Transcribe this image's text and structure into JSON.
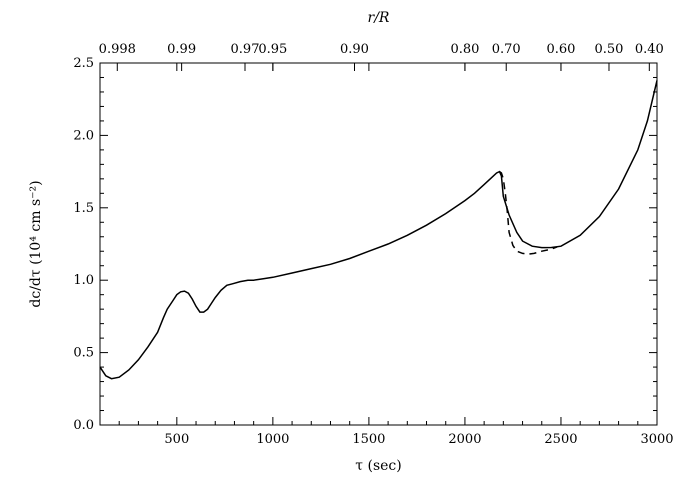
{
  "chart_data": {
    "type": "line",
    "title": "",
    "xlabel": "τ (sec)",
    "ylabel": "dc/dτ (10⁴ cm s⁻²)",
    "top_xlabel": "r/R",
    "xlim": [
      100,
      3000
    ],
    "ylim": [
      0.0,
      2.5
    ],
    "grid": false,
    "x_ticks": [
      500,
      1000,
      1500,
      2000,
      2500,
      3000
    ],
    "x_tick_labels": [
      "500",
      "1000",
      "1500",
      "2000",
      "2500",
      "3000"
    ],
    "y_ticks": [
      0.0,
      0.5,
      1.0,
      1.5,
      2.0,
      2.5
    ],
    "y_tick_labels": [
      "0.0",
      "0.5",
      "1.0",
      "1.5",
      "2.0",
      "2.5"
    ],
    "top_ticks": [
      {
        "x": 190,
        "label": "0.998"
      },
      {
        "x": 525,
        "label": "0.99"
      },
      {
        "x": 855,
        "label": "0.97"
      },
      {
        "x": 1000,
        "label": "0.95"
      },
      {
        "x": 1425,
        "label": "0.90"
      },
      {
        "x": 2000,
        "label": "0.80"
      },
      {
        "x": 2215,
        "label": "0.70"
      },
      {
        "x": 2500,
        "label": "0.60"
      },
      {
        "x": 2750,
        "label": "0.50"
      },
      {
        "x": 2960,
        "label": "0.40"
      }
    ],
    "series": [
      {
        "style": "solid",
        "x": [
          100,
          130,
          160,
          200,
          250,
          300,
          350,
          400,
          430,
          450,
          480,
          500,
          520,
          540,
          560,
          580,
          600,
          620,
          640,
          660,
          680,
          700,
          730,
          760,
          790,
          830,
          870,
          900,
          950,
          1000,
          1100,
          1200,
          1300,
          1400,
          1500,
          1600,
          1700,
          1800,
          1900,
          2000,
          2050,
          2100,
          2140,
          2165,
          2180,
          2190,
          2200,
          2230,
          2270,
          2300,
          2350,
          2400,
          2450,
          2500,
          2600,
          2700,
          2800,
          2900,
          2950,
          3000
        ],
        "y": [
          0.4,
          0.34,
          0.32,
          0.33,
          0.38,
          0.45,
          0.54,
          0.64,
          0.74,
          0.8,
          0.86,
          0.9,
          0.92,
          0.925,
          0.91,
          0.87,
          0.82,
          0.78,
          0.78,
          0.8,
          0.84,
          0.88,
          0.93,
          0.965,
          0.975,
          0.99,
          1.0,
          1.0,
          1.01,
          1.02,
          1.05,
          1.08,
          1.11,
          1.15,
          1.2,
          1.25,
          1.31,
          1.38,
          1.46,
          1.55,
          1.6,
          1.66,
          1.71,
          1.74,
          1.75,
          1.72,
          1.58,
          1.45,
          1.33,
          1.27,
          1.235,
          1.225,
          1.226,
          1.235,
          1.31,
          1.44,
          1.63,
          1.9,
          2.1,
          2.38
        ]
      },
      {
        "style": "dashed",
        "x": [
          2180,
          2190,
          2200,
          2210,
          2220,
          2230,
          2250,
          2270,
          2300,
          2330,
          2360,
          2400,
          2450,
          2480
        ],
        "y": [
          1.75,
          1.74,
          1.7,
          1.6,
          1.48,
          1.33,
          1.24,
          1.2,
          1.185,
          1.18,
          1.185,
          1.2,
          1.215,
          1.23
        ]
      }
    ]
  }
}
